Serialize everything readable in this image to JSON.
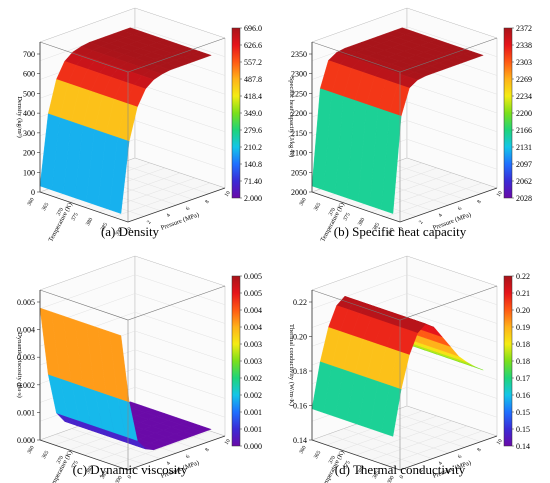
{
  "chart_data": [
    {
      "type": "surface",
      "caption": "(a) Density",
      "zlabel": "Density (kg/m³)",
      "xlabel": "Pressure (MPa)",
      "ylabel": "Temperature (K)",
      "z_ticks": [
        "0",
        "100",
        "200",
        "300",
        "400",
        "500",
        "600",
        "700"
      ],
      "zlim": [
        0,
        700
      ],
      "colorbar_ticks": [
        "696.0",
        "626.6",
        "557.2",
        "487.8",
        "418.4",
        "349.0",
        "279.6",
        "210.2",
        "140.8",
        "71.40",
        "2.000"
      ],
      "pressure_ticks": [
        "0",
        "2",
        "4",
        "6",
        "8",
        "10"
      ],
      "temperature_ticks": [
        "360",
        "365",
        "370",
        "375",
        "380",
        "385",
        "390"
      ],
      "surface_shape": [
        0.0,
        0.55,
        0.8,
        0.92,
        0.97,
        0.99,
        1.0,
        1.0,
        1.0,
        1.0,
        1.0,
        1.0
      ]
    },
    {
      "type": "surface",
      "caption": "(b) Specific heat capacity",
      "zlabel": "Specific heat capacity (J/kg·K)",
      "xlabel": "Pressure (MPa)",
      "ylabel": "Temperature (K)",
      "z_ticks": [
        "2000",
        "2050",
        "2100",
        "2150",
        "2200",
        "2250",
        "2300",
        "2350"
      ],
      "zlim": [
        2000,
        2350
      ],
      "colorbar_ticks": [
        "2372",
        "2338",
        "2303",
        "2269",
        "2234",
        "2200",
        "2166",
        "2131",
        "2097",
        "2062",
        "2028"
      ],
      "pressure_ticks": [
        "0",
        "2",
        "4",
        "6",
        "8",
        "10"
      ],
      "temperature_ticks": [
        "360",
        "365",
        "370",
        "375",
        "380",
        "385",
        "390"
      ],
      "surface_shape": [
        0.0,
        0.75,
        0.95,
        0.99,
        1.0,
        1.0,
        1.0,
        1.0,
        1.0,
        1.0,
        1.0,
        1.0
      ]
    },
    {
      "type": "surface",
      "caption": "(c) Dynamic viscosity",
      "zlabel": "Dynamic viscosity (Pa·s)",
      "xlabel": "Pressure (MPa)",
      "ylabel": "Temperature (K)",
      "z_ticks": [
        "0.000",
        "0.001",
        "0.002",
        "0.003",
        "0.004",
        "0.005"
      ],
      "zlim": [
        0,
        0.0055
      ],
      "colorbar_ticks": [
        "0.005",
        "0.005",
        "0.004",
        "0.004",
        "0.003",
        "0.003",
        "0.002",
        "0.002",
        "0.001",
        "0.001",
        "0.000"
      ],
      "pressure_ticks": [
        "0",
        "2",
        "4",
        "6",
        "8",
        "10"
      ],
      "temperature_ticks": [
        "360",
        "365",
        "370",
        "375",
        "380",
        "385",
        "390"
      ],
      "surface_shape": [
        1.0,
        0.45,
        0.12,
        0.03,
        0.0,
        0.0,
        0.0,
        0.0,
        0.0,
        0.0,
        0.0,
        0.0
      ]
    },
    {
      "type": "surface",
      "caption": "(d) Thermal conductivity",
      "zlabel": "Thermal conductivity (W/m·K)",
      "xlabel": "Pressure (MPa)",
      "ylabel": "Temperature (K)",
      "z_ticks": [
        "0.14",
        "0.16",
        "0.18",
        "0.20",
        "0.22"
      ],
      "zlim": [
        0.13,
        0.23
      ],
      "colorbar_ticks": [
        "0.22",
        "0.21",
        "0.20",
        "0.19",
        "0.18",
        "0.18",
        "0.17",
        "0.16",
        "0.15",
        "0.15",
        "0.14"
      ],
      "pressure_ticks": [
        "0",
        "2",
        "4",
        "6",
        "8",
        "10"
      ],
      "temperature_ticks": [
        "360",
        "365",
        "370",
        "375",
        "380",
        "385",
        "390"
      ],
      "surface_shape": [
        0.2,
        0.55,
        0.8,
        0.95,
        1.0,
        0.95,
        0.85,
        0.75,
        0.65,
        0.58,
        0.52,
        0.47
      ]
    }
  ],
  "colormap": [
    "#6a0aa8",
    "#3b2bd6",
    "#1f70ff",
    "#14c6e8",
    "#1fd47a",
    "#7be01a",
    "#f4ec14",
    "#ffb21a",
    "#ff5a14",
    "#e6141a",
    "#a8141a"
  ]
}
